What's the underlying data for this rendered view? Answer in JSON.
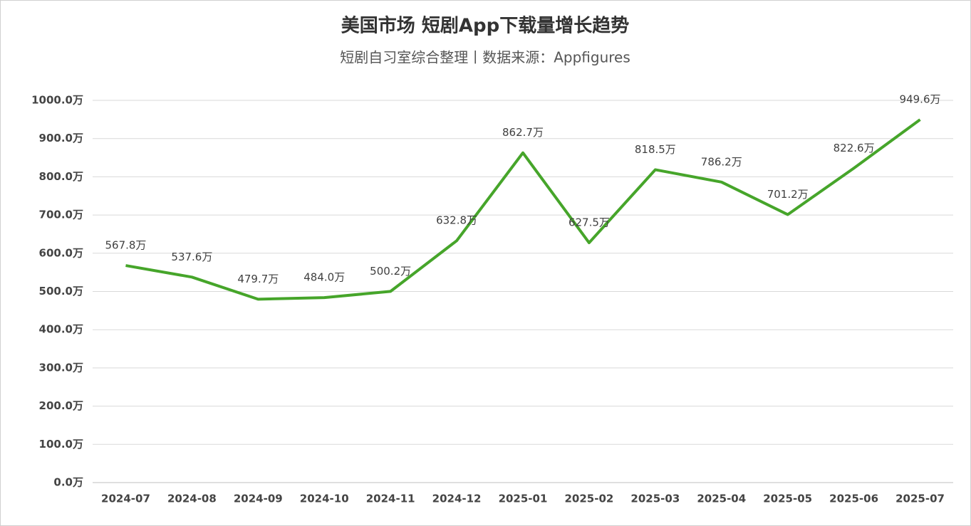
{
  "chart_data": {
    "type": "line",
    "title": "美国市场 短剧App下载量增长趋势",
    "subtitle": "短剧自习室综合整理丨数据来源：Appfigures",
    "categories": [
      "2024-07",
      "2024-08",
      "2024-09",
      "2024-10",
      "2024-11",
      "2024-12",
      "2025-01",
      "2025-02",
      "2025-03",
      "2025-04",
      "2025-05",
      "2025-06",
      "2025-07"
    ],
    "series": [
      {
        "name": "下载量",
        "color": "#46a52a",
        "values": [
          567.8,
          537.6,
          479.7,
          484.0,
          500.2,
          632.8,
          862.7,
          627.5,
          818.5,
          786.2,
          701.2,
          822.6,
          949.6
        ],
        "value_labels": [
          "567.8万",
          "537.6万",
          "479.7万",
          "484.0万",
          "500.2万",
          "632.8万",
          "862.7万",
          "627.5万",
          "818.5万",
          "786.2万",
          "701.2万",
          "822.6万",
          "949.6万"
        ]
      }
    ],
    "ylim": [
      0,
      1000
    ],
    "yticks": [
      {
        "value": 0,
        "label": "0.0万"
      },
      {
        "value": 100,
        "label": "100.0万"
      },
      {
        "value": 200,
        "label": "200.0万"
      },
      {
        "value": 300,
        "label": "300.0万"
      },
      {
        "value": 400,
        "label": "400.0万"
      },
      {
        "value": 500,
        "label": "500.0万"
      },
      {
        "value": 600,
        "label": "600.0万"
      },
      {
        "value": 700,
        "label": "700.0万"
      },
      {
        "value": 800,
        "label": "800.0万"
      },
      {
        "value": 900,
        "label": "900.0万"
      },
      {
        "value": 1000,
        "label": "1000.0万"
      }
    ],
    "grid": true
  }
}
